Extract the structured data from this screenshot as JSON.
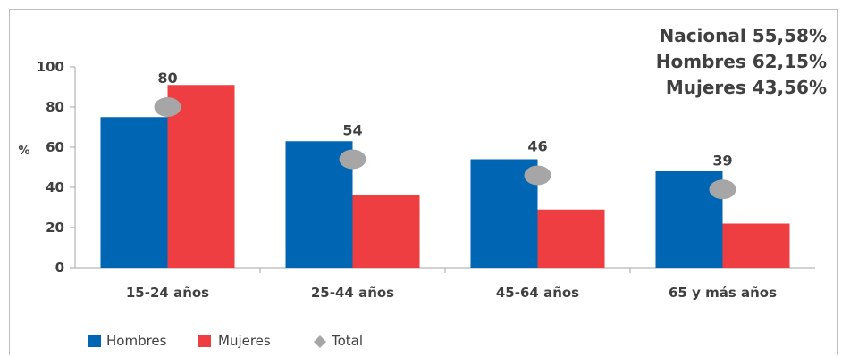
{
  "chart_data": {
    "type": "bar",
    "ylabel": "%",
    "ylim": [
      0,
      100
    ],
    "yticks": [
      0,
      20,
      40,
      60,
      80,
      100
    ],
    "categories": [
      "15-24 años",
      "25-44 años",
      "45-64 años",
      "65 y más años"
    ],
    "series": [
      {
        "name": "Hombres",
        "color": "#0066b3",
        "values": [
          75,
          63,
          54,
          48
        ]
      },
      {
        "name": "Mujeres",
        "color": "#ef3e42",
        "values": [
          91,
          36,
          29,
          22
        ]
      }
    ],
    "total": {
      "name": "Total",
      "color": "#a6a6a6",
      "values": [
        80,
        54,
        46,
        39
      ]
    },
    "summary": [
      "Nacional 55,58%",
      "Hombres 62,15%",
      "Mujeres 43,56%"
    ],
    "grid": false,
    "legend_position": "bottom-left"
  }
}
